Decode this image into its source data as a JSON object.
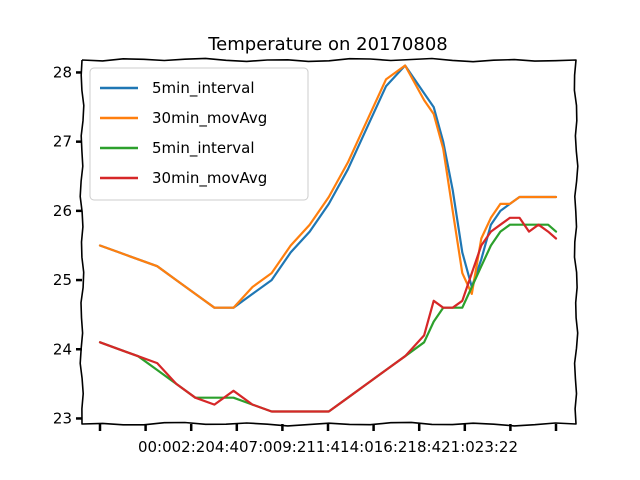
{
  "chart_data": {
    "type": "line",
    "title": "Temperature on 20170808",
    "xlabel": "",
    "ylabel": "",
    "x_tick_labels": [
      "00:00",
      "02:20",
      "04:40",
      "07:00",
      "09:21",
      "11:41",
      "14:01",
      "16:21",
      "18:42",
      "21:02",
      "23:22"
    ],
    "x_tick_text": "00:002:204:407:009:211:414:016:218:421:023:22",
    "x_range_minutes": [
      0,
      1435
    ],
    "y_ticks": [
      23,
      24,
      25,
      26,
      27,
      28
    ],
    "y_tick_labels": [
      "23",
      "24",
      "25",
      "26",
      "27",
      "28"
    ],
    "ylim": [
      22.92,
      28.18
    ],
    "grid": false,
    "legend_position": "top-left",
    "series": [
      {
        "name": "5min_interval",
        "color": "#1f77b4",
        "x": [
          0,
          60,
          120,
          180,
          240,
          300,
          360,
          420,
          480,
          540,
          600,
          660,
          720,
          780,
          840,
          900,
          960,
          1020,
          1050,
          1080,
          1110,
          1140,
          1170,
          1200,
          1230,
          1260,
          1290,
          1320,
          1350,
          1380,
          1410,
          1435
        ],
        "values": [
          25.5,
          25.4,
          25.3,
          25.2,
          25.0,
          24.8,
          24.6,
          24.6,
          24.8,
          25.0,
          25.4,
          25.7,
          26.1,
          26.6,
          27.2,
          27.8,
          28.1,
          27.7,
          27.5,
          27.0,
          26.3,
          25.4,
          24.9,
          25.3,
          25.8,
          26.0,
          26.1,
          26.2,
          26.2,
          26.2,
          26.2,
          26.2
        ]
      },
      {
        "name": "30min_movAvg",
        "color": "#ff7f0e",
        "x": [
          0,
          60,
          120,
          180,
          240,
          300,
          360,
          420,
          480,
          540,
          600,
          660,
          720,
          780,
          840,
          900,
          960,
          1020,
          1050,
          1080,
          1110,
          1140,
          1170,
          1200,
          1230,
          1260,
          1290,
          1320,
          1350,
          1380,
          1410,
          1435
        ],
        "values": [
          25.5,
          25.4,
          25.3,
          25.2,
          25.0,
          24.8,
          24.6,
          24.6,
          24.9,
          25.1,
          25.5,
          25.8,
          26.2,
          26.7,
          27.3,
          27.9,
          28.1,
          27.6,
          27.4,
          26.9,
          26.0,
          25.1,
          24.8,
          25.6,
          25.9,
          26.1,
          26.1,
          26.2,
          26.2,
          26.2,
          26.2,
          26.2
        ]
      },
      {
        "name": "5min_interval",
        "color": "#2ca02c",
        "x": [
          0,
          60,
          120,
          180,
          240,
          300,
          360,
          420,
          480,
          540,
          600,
          660,
          720,
          780,
          840,
          900,
          960,
          1020,
          1050,
          1080,
          1110,
          1140,
          1170,
          1200,
          1230,
          1260,
          1290,
          1320,
          1350,
          1380,
          1410,
          1435
        ],
        "values": [
          24.1,
          24.0,
          23.9,
          23.7,
          23.5,
          23.3,
          23.3,
          23.3,
          23.2,
          23.1,
          23.1,
          23.1,
          23.1,
          23.3,
          23.5,
          23.7,
          23.9,
          24.1,
          24.4,
          24.6,
          24.6,
          24.6,
          24.9,
          25.2,
          25.5,
          25.7,
          25.8,
          25.8,
          25.8,
          25.8,
          25.8,
          25.7
        ]
      },
      {
        "name": "30min_movAvg",
        "color": "#d62728",
        "x": [
          0,
          60,
          120,
          180,
          240,
          300,
          360,
          420,
          480,
          540,
          600,
          660,
          720,
          780,
          840,
          900,
          960,
          1020,
          1050,
          1080,
          1110,
          1140,
          1170,
          1200,
          1230,
          1260,
          1290,
          1320,
          1350,
          1380,
          1410,
          1435
        ],
        "values": [
          24.1,
          24.0,
          23.9,
          23.8,
          23.5,
          23.3,
          23.2,
          23.4,
          23.2,
          23.1,
          23.1,
          23.1,
          23.1,
          23.3,
          23.5,
          23.7,
          23.9,
          24.2,
          24.7,
          24.6,
          24.6,
          24.7,
          25.1,
          25.5,
          25.7,
          25.8,
          25.9,
          25.9,
          25.7,
          25.8,
          25.7,
          25.6
        ]
      }
    ]
  }
}
